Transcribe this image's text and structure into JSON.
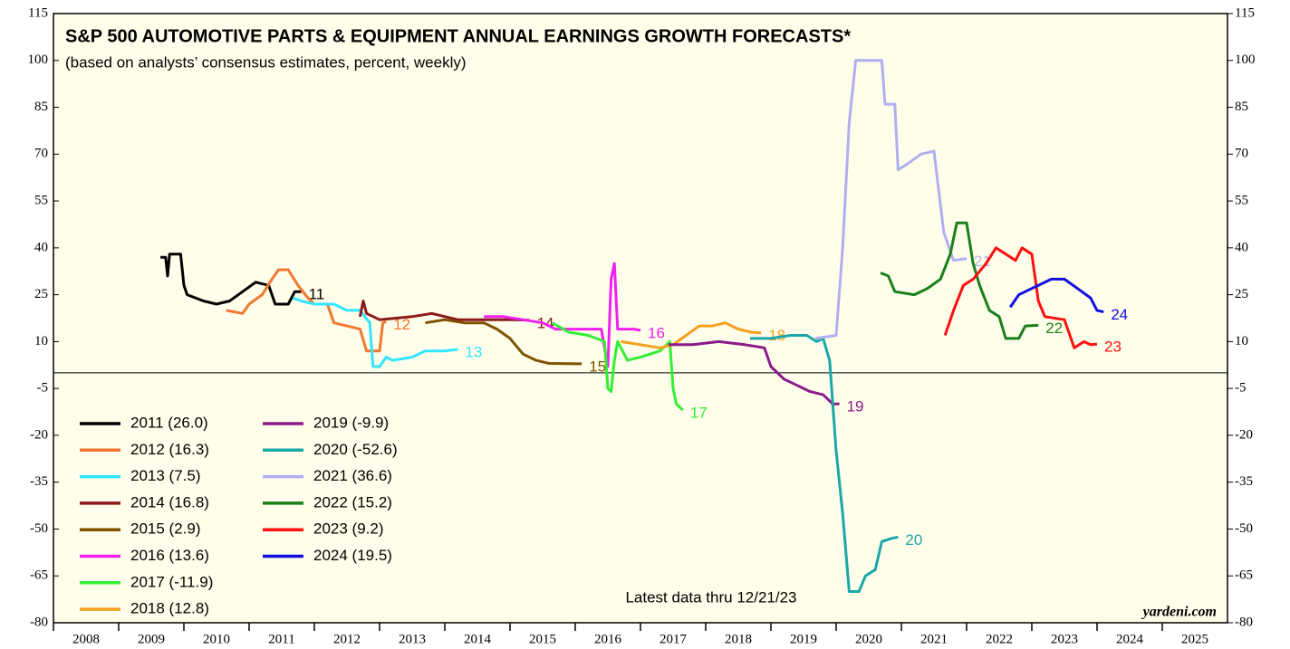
{
  "chart_data": {
    "type": "line",
    "title": "S&P 500 AUTOMOTIVE PARTS & EQUIPMENT ANNUAL EARNINGS GROWTH FORECASTS*",
    "subtitle": "(based on analysts’ consensus estimates, percent, weekly)",
    "annotations": [
      "Latest data thru 12/21/23",
      "yardeni.com"
    ],
    "xlim": [
      2008,
      2026
    ],
    "xticks": [
      {
        "value": 2008.5,
        "label": "2008"
      },
      {
        "value": 2009.5,
        "label": "2009"
      },
      {
        "value": 2010.5,
        "label": "2010"
      },
      {
        "value": 2011.5,
        "label": "2011"
      },
      {
        "value": 2012.5,
        "label": "2012"
      },
      {
        "value": 2013.5,
        "label": "2013"
      },
      {
        "value": 2014.5,
        "label": "2014"
      },
      {
        "value": 2015.5,
        "label": "2015"
      },
      {
        "value": 2016.5,
        "label": "2016"
      },
      {
        "value": 2017.5,
        "label": "2017"
      },
      {
        "value": 2018.5,
        "label": "2018"
      },
      {
        "value": 2019.5,
        "label": "2019"
      },
      {
        "value": 2020.5,
        "label": "2020"
      },
      {
        "value": 2021.5,
        "label": "2021"
      },
      {
        "value": 2022.5,
        "label": "2022"
      },
      {
        "value": 2023.5,
        "label": "2023"
      },
      {
        "value": 2024.5,
        "label": "2024"
      },
      {
        "value": 2025.5,
        "label": "2025"
      }
    ],
    "ylim": [
      -80,
      115
    ],
    "yticks": [
      115,
      100,
      85,
      70,
      55,
      40,
      25,
      10,
      -5,
      -20,
      -35,
      -50,
      -65,
      -80
    ],
    "y2lim": [
      -80,
      115
    ],
    "y2ticks": [
      115,
      100,
      85,
      70,
      55,
      40,
      25,
      10,
      -5,
      -20,
      -35,
      -50,
      -65,
      -80
    ],
    "hline": 0,
    "legend": "lower left",
    "series": [
      {
        "name": "2011 (26.0)",
        "label": "11",
        "color": "#000000",
        "x": [
          2009.64,
          2009.72,
          2009.75,
          2009.78,
          2009.95,
          2010.0,
          2010.05,
          2010.3,
          2010.5,
          2010.7,
          2010.9,
          2011.1,
          2011.3,
          2011.4,
          2011.6,
          2011.7,
          2011.8
        ],
        "values": [
          37,
          37,
          31,
          38,
          38,
          28,
          25,
          23,
          22,
          23,
          26,
          29,
          28,
          22,
          22,
          26,
          26
        ]
      },
      {
        "name": "2012 (16.3)",
        "label": "12",
        "color": "#f07830",
        "x": [
          2010.65,
          2010.9,
          2011.0,
          2011.2,
          2011.35,
          2011.45,
          2011.6,
          2011.75,
          2011.9,
          2012.0,
          2012.2,
          2012.3,
          2012.5,
          2012.7,
          2012.8,
          2013.0,
          2013.05,
          2013.1
        ],
        "values": [
          20,
          19,
          22,
          25,
          30,
          33,
          33,
          28,
          24,
          22,
          22,
          16,
          15,
          14,
          7,
          7,
          16,
          16.3
        ]
      },
      {
        "name": "2013 (7.5)",
        "label": "13",
        "color": "#33e6ff",
        "x": [
          2011.67,
          2011.8,
          2012.0,
          2012.3,
          2012.5,
          2012.7,
          2012.85,
          2012.9,
          2013.0,
          2013.1,
          2013.2,
          2013.5,
          2013.7,
          2014.0,
          2014.2
        ],
        "values": [
          24,
          23,
          22,
          22,
          20,
          20,
          16,
          2,
          2,
          5,
          4,
          5,
          7,
          7,
          7.5
        ]
      },
      {
        "name": "2014 (16.8)",
        "label": "14",
        "color": "#8b1a1a",
        "x": [
          2012.7,
          2012.75,
          2012.8,
          2013.0,
          2013.5,
          2013.8,
          2014.2,
          2014.6,
          2015.1,
          2015.3
        ],
        "values": [
          18,
          23,
          19,
          17,
          18,
          19,
          17,
          17,
          17,
          16.8
        ]
      },
      {
        "name": "2015 (2.9)",
        "label": "15",
        "color": "#7f5200",
        "x": [
          2013.7,
          2014.0,
          2014.3,
          2014.6,
          2014.8,
          2015.0,
          2015.2,
          2015.4,
          2015.6,
          2016.0,
          2016.1
        ],
        "values": [
          16,
          17,
          16,
          16,
          14,
          11,
          6,
          4,
          3,
          2.9,
          2.9
        ]
      },
      {
        "name": "2016 (13.6)",
        "label": "16",
        "color": "#f020f0",
        "x": [
          2014.6,
          2014.9,
          2015.2,
          2015.5,
          2015.7,
          2016.0,
          2016.4,
          2016.5,
          2016.55,
          2016.6,
          2016.65,
          2016.9,
          2017.0
        ],
        "values": [
          18,
          18,
          17,
          16,
          14,
          14,
          14,
          2,
          30,
          35,
          14,
          14,
          13.6
        ]
      },
      {
        "name": "2017 (-11.9)",
        "label": "17",
        "color": "#33ee33",
        "x": [
          2015.65,
          2015.9,
          2016.2,
          2016.45,
          2016.5,
          2016.55,
          2016.6,
          2016.65,
          2016.8,
          2017.0,
          2017.3,
          2017.45,
          2017.5,
          2017.55,
          2017.65
        ],
        "values": [
          16,
          13,
          12,
          10,
          -5,
          -6,
          4,
          10,
          4,
          5,
          7,
          10,
          -5,
          -10,
          -11.9
        ]
      },
      {
        "name": "2018 (12.8)",
        "label": "18",
        "color": "#f5a020",
        "x": [
          2016.7,
          2017.0,
          2017.3,
          2017.5,
          2017.7,
          2017.9,
          2018.1,
          2018.3,
          2018.5,
          2018.7,
          2018.85
        ],
        "values": [
          10,
          9,
          8,
          9,
          12,
          15,
          15,
          16,
          14,
          13,
          12.8
        ]
      },
      {
        "name": "2019 (-9.9)",
        "label": "19",
        "color": "#8b1a8b",
        "x": [
          2017.43,
          2017.8,
          2018.2,
          2018.6,
          2018.9,
          2019.0,
          2019.2,
          2019.4,
          2019.6,
          2019.8,
          2019.95,
          2020.05
        ],
        "values": [
          9,
          9,
          10,
          9,
          8,
          2,
          -2,
          -4,
          -6,
          -7,
          -10,
          -9.9
        ]
      },
      {
        "name": "2020 (-52.6)",
        "label": "20",
        "color": "#1aa7a7",
        "x": [
          2018.68,
          2019.0,
          2019.3,
          2019.55,
          2019.7,
          2019.8,
          2019.9,
          2020.0,
          2020.1,
          2020.2,
          2020.35,
          2020.45,
          2020.6,
          2020.7,
          2020.85,
          2020.95
        ],
        "values": [
          11,
          11,
          12,
          12,
          10,
          11,
          4,
          -25,
          -45,
          -70,
          -70,
          -65,
          -63,
          -54,
          -53,
          -52.6
        ]
      },
      {
        "name": "2021 (36.6)",
        "label": "21",
        "color": "#b0b0f0",
        "x": [
          2019.68,
          2020.0,
          2020.1,
          2020.2,
          2020.3,
          2020.7,
          2020.75,
          2020.9,
          2020.95,
          2021.1,
          2021.3,
          2021.5,
          2021.65,
          2021.8,
          2022.0
        ],
        "values": [
          11,
          12,
          40,
          80,
          100,
          100,
          86,
          86,
          65,
          67,
          70,
          71,
          45,
          36,
          36.6
        ]
      },
      {
        "name": "2022 (15.2)",
        "label": "22",
        "color": "#1a7f1a",
        "x": [
          2020.68,
          2020.8,
          2020.9,
          2021.2,
          2021.4,
          2021.6,
          2021.75,
          2021.85,
          2022.0,
          2022.1,
          2022.2,
          2022.35,
          2022.5,
          2022.6,
          2022.8,
          2022.9,
          2023.1
        ],
        "values": [
          32,
          31,
          26,
          25,
          27,
          30,
          38,
          48,
          48,
          35,
          28,
          20,
          18,
          11,
          11,
          15,
          15.2
        ]
      },
      {
        "name": "2023 (9.2)",
        "label": "23",
        "color": "#ff1010",
        "x": [
          2021.67,
          2021.8,
          2021.95,
          2022.1,
          2022.3,
          2022.45,
          2022.6,
          2022.75,
          2022.85,
          2023.0,
          2023.1,
          2023.2,
          2023.5,
          2023.6,
          2023.65,
          2023.8,
          2023.9,
          2024.0
        ],
        "values": [
          12,
          20,
          28,
          30,
          35,
          40,
          38,
          36,
          40,
          38,
          23,
          18,
          17,
          11,
          8,
          10,
          9,
          9.2
        ]
      },
      {
        "name": "2024 (19.5)",
        "label": "24",
        "color": "#1010e0",
        "x": [
          2022.67,
          2022.8,
          2023.0,
          2023.3,
          2023.5,
          2023.7,
          2023.9,
          2024.0,
          2024.1
        ],
        "values": [
          21,
          25,
          27,
          30,
          30,
          27,
          24,
          20,
          19.5
        ]
      }
    ]
  }
}
